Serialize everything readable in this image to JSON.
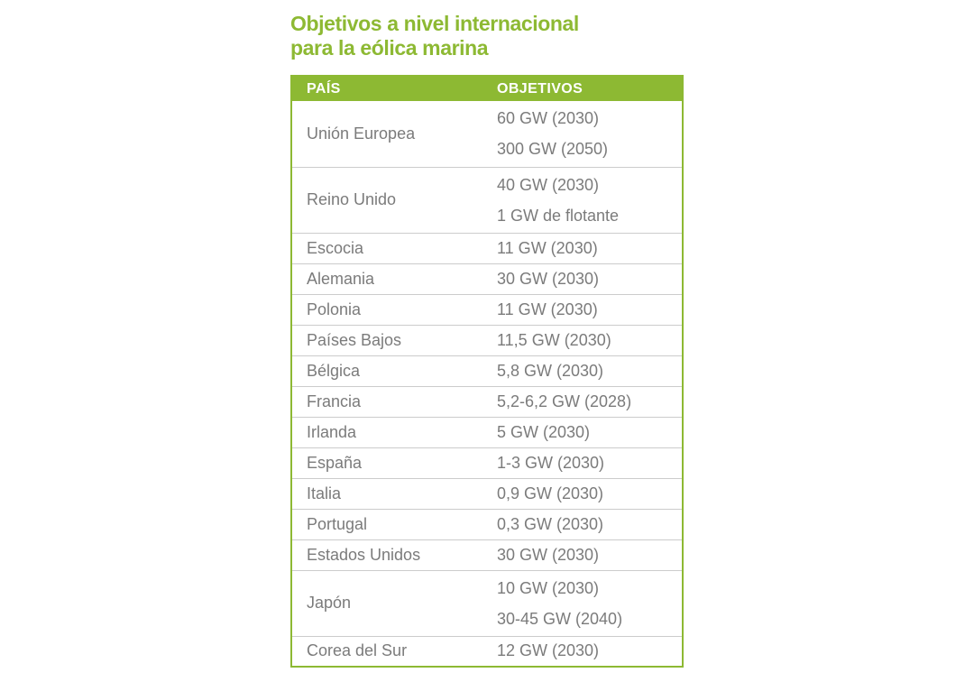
{
  "title": {
    "line1": "Objetivos a nivel internacional",
    "line2": "para la eólica marina"
  },
  "table": {
    "columns": [
      "PAÍS",
      "OBJETIVOS"
    ],
    "rows": [
      {
        "pais": "Unión Europea",
        "objetivos": [
          "60 GW (2030)",
          "300 GW (2050)"
        ]
      },
      {
        "pais": "Reino Unido",
        "objetivos": [
          "40 GW (2030)",
          "1 GW de flotante"
        ]
      },
      {
        "pais": "Escocia",
        "objetivos": [
          "11 GW (2030)"
        ]
      },
      {
        "pais": "Alemania",
        "objetivos": [
          "30 GW (2030)"
        ]
      },
      {
        "pais": "Polonia",
        "objetivos": [
          "11 GW (2030)"
        ]
      },
      {
        "pais": "Países Bajos",
        "objetivos": [
          "11,5 GW (2030)"
        ]
      },
      {
        "pais": "Bélgica",
        "objetivos": [
          "5,8 GW (2030)"
        ]
      },
      {
        "pais": "Francia",
        "objetivos": [
          "5,2-6,2 GW (2028)"
        ]
      },
      {
        "pais": "Irlanda",
        "objetivos": [
          "5 GW (2030)"
        ]
      },
      {
        "pais": "España",
        "objetivos": [
          "1-3 GW (2030)"
        ]
      },
      {
        "pais": "Italia",
        "objetivos": [
          "0,9 GW (2030)"
        ]
      },
      {
        "pais": "Portugal",
        "objetivos": [
          "0,3 GW (2030)"
        ]
      },
      {
        "pais": "Estados Unidos",
        "objetivos": [
          "30 GW (2030)"
        ]
      },
      {
        "pais": "Japón",
        "objetivos": [
          "10 GW (2030)",
          "30-45 GW (2040)"
        ]
      },
      {
        "pais": "Corea del Sur",
        "objetivos": [
          "12 GW (2030)"
        ]
      }
    ]
  },
  "colors": {
    "accent_green": "#8db933",
    "header_text": "#ffffff",
    "body_text": "#7b7b7b",
    "row_divider": "#cccccc",
    "background": "#ffffff"
  },
  "chart_data": {
    "type": "table",
    "title": "Objetivos a nivel internacional para la eólica marina",
    "columns": [
      "PAÍS",
      "OBJETIVOS"
    ],
    "rows": [
      [
        "Unión Europea",
        "60 GW (2030); 300 GW (2050)"
      ],
      [
        "Reino Unido",
        "40 GW (2030); 1 GW de flotante"
      ],
      [
        "Escocia",
        "11 GW (2030)"
      ],
      [
        "Alemania",
        "30 GW (2030)"
      ],
      [
        "Polonia",
        "11 GW (2030)"
      ],
      [
        "Países Bajos",
        "11,5 GW (2030)"
      ],
      [
        "Bélgica",
        "5,8 GW (2030)"
      ],
      [
        "Francia",
        "5,2-6,2 GW (2028)"
      ],
      [
        "Irlanda",
        "5 GW (2030)"
      ],
      [
        "España",
        "1-3 GW (2030)"
      ],
      [
        "Italia",
        "0,9 GW (2030)"
      ],
      [
        "Portugal",
        "0,3 GW (2030)"
      ],
      [
        "Estados Unidos",
        "30 GW (2030)"
      ],
      [
        "Japón",
        "10 GW (2030); 30-45 GW (2040)"
      ],
      [
        "Corea del Sur",
        "12 GW (2030)"
      ]
    ]
  }
}
